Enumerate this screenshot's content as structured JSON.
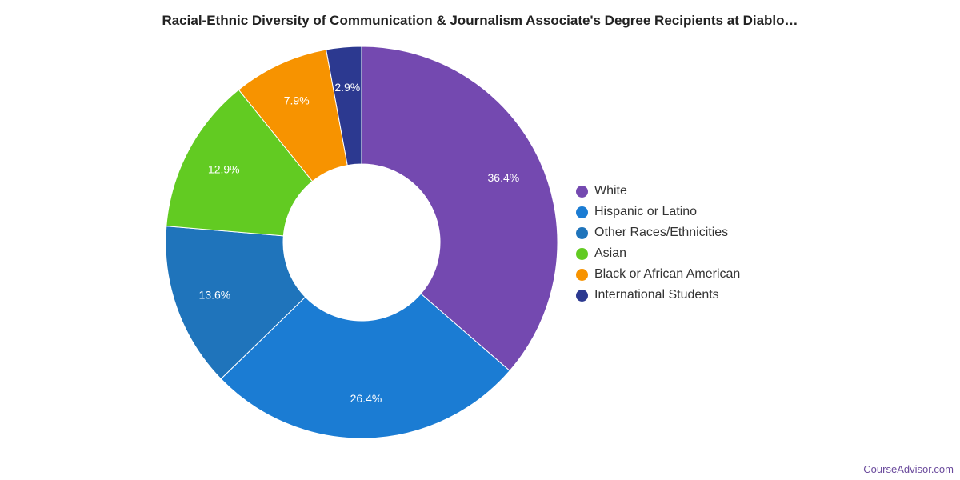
{
  "chart_data": {
    "type": "pie",
    "title": "Racial-Ethnic Diversity of Communication & Journalism Associate's Degree Recipients at Diablo…",
    "donut": true,
    "legend_position": "right",
    "categories": [
      "White",
      "Hispanic or Latino",
      "Other Races/Ethnicities",
      "Asian",
      "Black or African American",
      "International Students"
    ],
    "values": [
      36.4,
      26.4,
      13.6,
      12.9,
      7.9,
      2.9
    ],
    "labels": [
      "36.4%",
      "26.4%",
      "13.6%",
      "12.9%",
      "7.9%",
      "2.9%"
    ],
    "colors": [
      "#7449b0",
      "#1b7cd3",
      "#1f74bb",
      "#62cb22",
      "#f79300",
      "#2c3990"
    ]
  },
  "footer": {
    "brand": "CourseAdvisor.com"
  }
}
